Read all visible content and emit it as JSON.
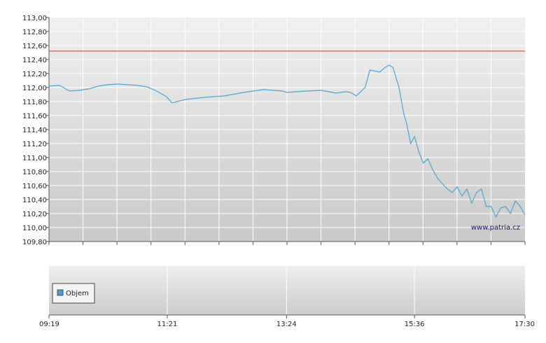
{
  "watermark": "www.patria.cz",
  "chart_data": {
    "type": "line",
    "title": "",
    "xlabel": "",
    "ylabel": "",
    "ylim": [
      109.8,
      113.0
    ],
    "y_ticks": [
      "113,00",
      "112,80",
      "112,60",
      "112,40",
      "112,20",
      "112,00",
      "111,80",
      "111,60",
      "111,40",
      "111,20",
      "111,00",
      "110,80",
      "110,60",
      "110,40",
      "110,20",
      "110,00",
      "109,80"
    ],
    "x_ticks": [
      "09:19",
      "11:21",
      "13:24",
      "15:36",
      "17:30"
    ],
    "xlim": [
      "09:19",
      "17:30"
    ],
    "grid": true,
    "reference_line": {
      "value": 112.52,
      "color": "#cc3333"
    },
    "series": [
      {
        "color": "#4da6d6",
        "points": [
          [
            "09:19",
            112.02
          ],
          [
            "09:30",
            112.03
          ],
          [
            "09:40",
            111.95
          ],
          [
            "09:50",
            111.96
          ],
          [
            "10:00",
            111.98
          ],
          [
            "10:10",
            112.02
          ],
          [
            "10:20",
            112.04
          ],
          [
            "10:30",
            112.05
          ],
          [
            "10:40",
            112.04
          ],
          [
            "10:50",
            112.03
          ],
          [
            "11:00",
            112.01
          ],
          [
            "11:10",
            111.95
          ],
          [
            "11:20",
            111.87
          ],
          [
            "11:26",
            111.78
          ],
          [
            "11:40",
            111.83
          ],
          [
            "12:00",
            111.86
          ],
          [
            "12:20",
            111.88
          ],
          [
            "12:40",
            111.93
          ],
          [
            "13:00",
            111.97
          ],
          [
            "13:20",
            111.95
          ],
          [
            "13:24",
            111.93
          ],
          [
            "13:45",
            111.95
          ],
          [
            "14:00",
            111.96
          ],
          [
            "14:15",
            111.92
          ],
          [
            "14:25",
            111.94
          ],
          [
            "14:30",
            111.93
          ],
          [
            "14:36",
            111.88
          ],
          [
            "14:45",
            112.0
          ],
          [
            "14:50",
            112.25
          ],
          [
            "15:00",
            112.22
          ],
          [
            "15:05",
            112.28
          ],
          [
            "15:10",
            112.32
          ],
          [
            "15:14",
            112.28
          ],
          [
            "15:20",
            112.0
          ],
          [
            "15:25",
            111.62
          ],
          [
            "15:28",
            111.48
          ],
          [
            "15:32",
            111.2
          ],
          [
            "15:36",
            111.3
          ],
          [
            "15:40",
            111.1
          ],
          [
            "15:45",
            110.92
          ],
          [
            "15:50",
            110.98
          ],
          [
            "15:55",
            110.82
          ],
          [
            "16:00",
            110.7
          ],
          [
            "16:05",
            110.62
          ],
          [
            "16:10",
            110.55
          ],
          [
            "16:15",
            110.5
          ],
          [
            "16:20",
            110.58
          ],
          [
            "16:25",
            110.45
          ],
          [
            "16:30",
            110.55
          ],
          [
            "16:35",
            110.35
          ],
          [
            "16:40",
            110.5
          ],
          [
            "16:45",
            110.55
          ],
          [
            "16:50",
            110.3
          ],
          [
            "16:55",
            110.3
          ],
          [
            "17:00",
            110.15
          ],
          [
            "17:05",
            110.28
          ],
          [
            "17:10",
            110.3
          ],
          [
            "17:15",
            110.2
          ],
          [
            "17:20",
            110.38
          ],
          [
            "17:25",
            110.3
          ],
          [
            "17:30",
            110.18
          ]
        ]
      }
    ]
  },
  "volume": {
    "legend_label": "Objem",
    "legend_color": "#4d9fd6"
  }
}
